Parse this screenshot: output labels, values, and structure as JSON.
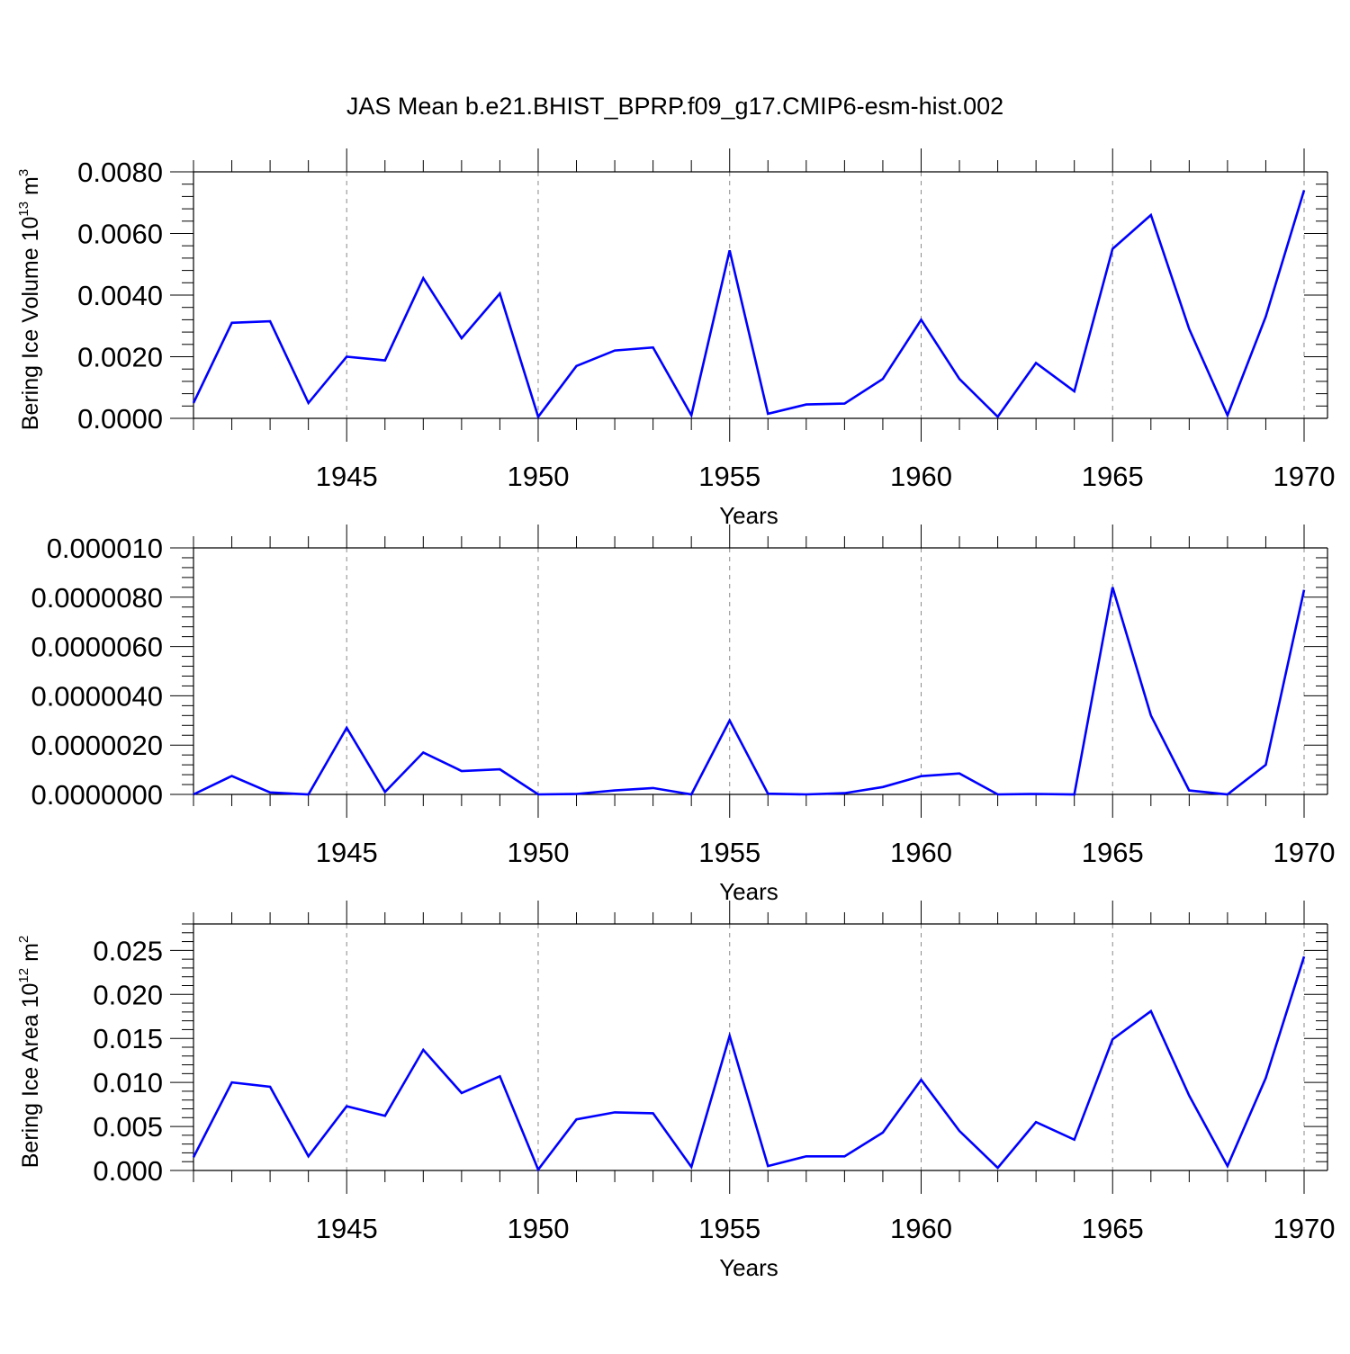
{
  "chart_data": [
    {
      "type": "line",
      "title": "JAS Mean b.e21.BHIST_BPRP.f09_g17.CMIP6-esm-hist.002",
      "xlabel": "Years",
      "ylabel_main": "Bering Ice Volume 10",
      "ylabel_exp": "13",
      "ylabel_unit": " m",
      "ylabel_unit_exp": "3",
      "xlim": [
        1941,
        1970
      ],
      "ylim": [
        0,
        0.008
      ],
      "xticks": [
        1945,
        1950,
        1955,
        1960,
        1965,
        1970
      ],
      "xtick_labels": [
        "1945",
        "1950",
        "1955",
        "1960",
        "1965",
        "1970"
      ],
      "yticks": [
        0,
        0.002,
        0.004,
        0.006,
        0.008
      ],
      "ytick_labels": [
        "0.0000",
        "0.0020",
        "0.0040",
        "0.0060",
        "0.0080"
      ],
      "series": [
        {
          "name": "Bering Ice Volume",
          "color": "#0000ff",
          "x": [
            1941,
            1942,
            1943,
            1944,
            1945,
            1946,
            1947,
            1948,
            1949,
            1950,
            1951,
            1952,
            1953,
            1954,
            1955,
            1956,
            1957,
            1958,
            1959,
            1960,
            1961,
            1962,
            1963,
            1964,
            1965,
            1966,
            1967,
            1968,
            1969,
            1970
          ],
          "values": [
            0.0005,
            0.0031,
            0.00315,
            0.0005,
            0.002,
            0.00188,
            0.00455,
            0.0026,
            0.00405,
            5e-05,
            0.0017,
            0.0022,
            0.0023,
            0.0001,
            0.00545,
            0.00015,
            0.00045,
            0.00048,
            0.00128,
            0.0032,
            0.00128,
            5e-05,
            0.0018,
            0.00088,
            0.0055,
            0.0066,
            0.0029,
            0.0001,
            0.0033,
            0.0074
          ]
        }
      ]
    },
    {
      "type": "line",
      "title": "",
      "xlabel": "Years",
      "xlim": [
        1941,
        1970
      ],
      "ylim": [
        0,
        1e-05
      ],
      "xticks": [
        1945,
        1950,
        1955,
        1960,
        1965,
        1970
      ],
      "xtick_labels": [
        "1945",
        "1950",
        "1955",
        "1960",
        "1965",
        "1970"
      ],
      "yticks": [
        0,
        2e-06,
        4e-06,
        6e-06,
        8e-06,
        1e-05
      ],
      "ytick_labels": [
        "0.0000000",
        "0.0000020",
        "0.0000040",
        "0.0000060",
        "0.0000080",
        "0.000010"
      ],
      "series": [
        {
          "name": "series-2",
          "color": "#0000ff",
          "x": [
            1941,
            1942,
            1943,
            1944,
            1945,
            1946,
            1947,
            1948,
            1949,
            1950,
            1951,
            1952,
            1953,
            1954,
            1955,
            1956,
            1957,
            1958,
            1959,
            1960,
            1961,
            1962,
            1963,
            1964,
            1965,
            1966,
            1967,
            1968,
            1969,
            1970
          ],
          "values": [
            0,
            7.5e-07,
            8e-08,
            0,
            2.7e-06,
            1e-07,
            1.7e-06,
            9.5e-07,
            1.02e-06,
            0,
            2e-08,
            1.6e-07,
            2.6e-07,
            0,
            3e-06,
            3e-08,
            0,
            5e-08,
            3e-07,
            7.4e-07,
            8.5e-07,
            0,
            2e-08,
            0,
            8.4e-06,
            3.2e-06,
            1.6e-07,
            0,
            1.2e-06,
            8.3e-06
          ]
        }
      ]
    },
    {
      "type": "line",
      "title": "",
      "xlabel": "Years",
      "ylabel_main": "Bering Ice Area 10",
      "ylabel_exp": "12",
      "ylabel_unit": " m",
      "ylabel_unit_exp": "2",
      "xlim": [
        1941,
        1970
      ],
      "ylim": [
        0,
        0.028
      ],
      "xticks": [
        1945,
        1950,
        1955,
        1960,
        1965,
        1970
      ],
      "xtick_labels": [
        "1945",
        "1950",
        "1955",
        "1960",
        "1965",
        "1970"
      ],
      "yticks": [
        0,
        0.005,
        0.01,
        0.015,
        0.02,
        0.025
      ],
      "ytick_labels": [
        "0.000",
        "0.005",
        "0.010",
        "0.015",
        "0.020",
        "0.025"
      ],
      "series": [
        {
          "name": "Bering Ice Area",
          "color": "#0000ff",
          "x": [
            1941,
            1942,
            1943,
            1944,
            1945,
            1946,
            1947,
            1948,
            1949,
            1950,
            1951,
            1952,
            1953,
            1954,
            1955,
            1956,
            1957,
            1958,
            1959,
            1960,
            1961,
            1962,
            1963,
            1964,
            1965,
            1966,
            1967,
            1968,
            1969,
            1970
          ],
          "values": [
            0.0015,
            0.01,
            0.0095,
            0.0016,
            0.0073,
            0.0062,
            0.0137,
            0.0088,
            0.0107,
            0.0001,
            0.0058,
            0.0066,
            0.0065,
            0.0004,
            0.0153,
            0.0005,
            0.0016,
            0.0016,
            0.0043,
            0.0103,
            0.0045,
            0.0003,
            0.0055,
            0.0035,
            0.0149,
            0.0181,
            0.0085,
            0.0005,
            0.0105,
            0.0243
          ]
        }
      ]
    }
  ]
}
